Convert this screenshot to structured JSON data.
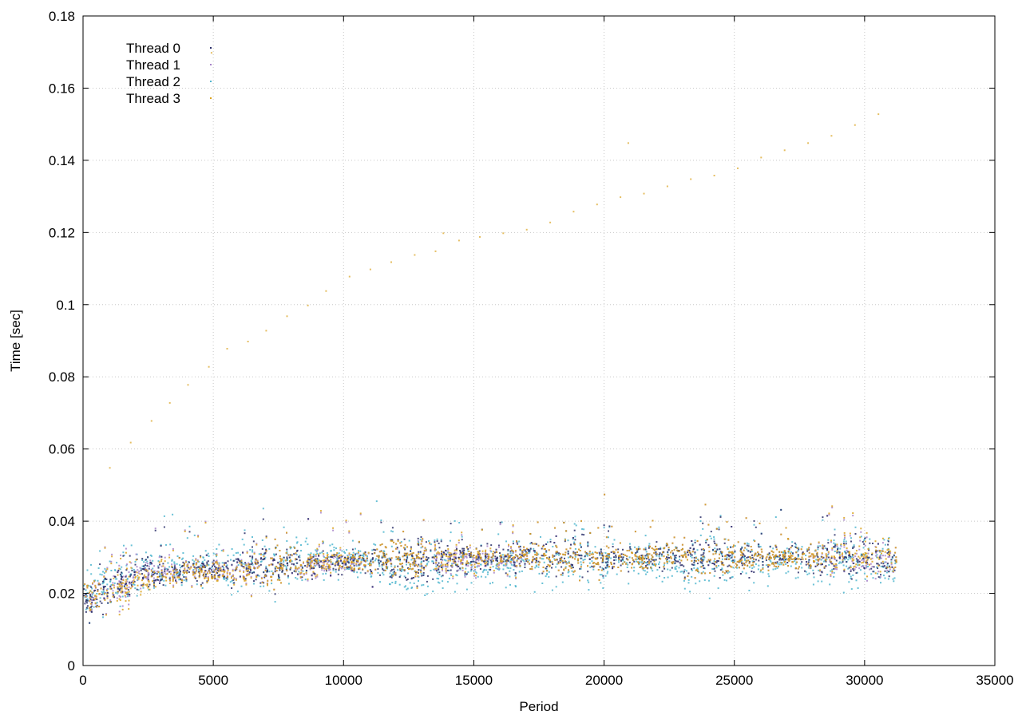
{
  "chart_data": {
    "type": "scatter",
    "title": "",
    "xlabel": "Period",
    "ylabel": "Time [sec]",
    "xlim": [
      0,
      35000
    ],
    "ylim": [
      0,
      0.18
    ],
    "xticks": [
      "0",
      "5000",
      "10000",
      "15000",
      "20000",
      "25000",
      "30000",
      "35000"
    ],
    "yticks": [
      "0",
      "0.02",
      "0.04",
      "0.06",
      "0.08",
      "0.1",
      "0.12",
      "0.14",
      "0.16",
      "0.18"
    ],
    "grid": true,
    "legend_position": "top-left",
    "x_end": 31200,
    "series": [
      {
        "name": "Thread 0",
        "color": "#2b2f6a",
        "points": [
          [
            200,
            0.018
          ],
          [
            2000,
            0.025
          ],
          [
            5000,
            0.027
          ],
          [
            8000,
            0.028
          ],
          [
            11000,
            0.029
          ],
          [
            14000,
            0.03
          ],
          [
            17000,
            0.03
          ],
          [
            20000,
            0.03
          ],
          [
            23000,
            0.03
          ],
          [
            26000,
            0.03
          ],
          [
            29000,
            0.03
          ],
          [
            31000,
            0.029
          ]
        ]
      },
      {
        "name": "Thread 1",
        "color": "#a783c9",
        "points": [
          [
            300,
            0.019
          ],
          [
            2500,
            0.026
          ],
          [
            5500,
            0.027
          ],
          [
            8500,
            0.028
          ],
          [
            11500,
            0.029
          ],
          [
            14500,
            0.029
          ],
          [
            17500,
            0.03
          ],
          [
            20500,
            0.03
          ],
          [
            23500,
            0.03
          ],
          [
            26500,
            0.03
          ],
          [
            29500,
            0.03
          ],
          [
            31100,
            0.029
          ]
        ]
      },
      {
        "name": "Thread 2",
        "color": "#4fb6cf",
        "points": [
          [
            100,
            0.02
          ],
          [
            3000,
            0.027
          ],
          [
            6000,
            0.028
          ],
          [
            9000,
            0.029
          ],
          [
            12000,
            0.029
          ],
          [
            15000,
            0.028
          ],
          [
            18000,
            0.029
          ],
          [
            21000,
            0.029
          ],
          [
            24000,
            0.029
          ],
          [
            27000,
            0.029
          ],
          [
            30000,
            0.029
          ],
          [
            31150,
            0.028
          ]
        ]
      },
      {
        "name": "Thread 3",
        "color": "#daa21e",
        "points": [
          [
            150,
            0.019
          ],
          [
            3500,
            0.026
          ],
          [
            6500,
            0.027
          ],
          [
            9500,
            0.029
          ],
          [
            12500,
            0.029
          ],
          [
            15500,
            0.03
          ],
          [
            18500,
            0.03
          ],
          [
            21500,
            0.03
          ],
          [
            24500,
            0.03
          ],
          [
            27500,
            0.03
          ],
          [
            30500,
            0.031
          ],
          [
            31150,
            0.029
          ]
        ]
      }
    ],
    "outliers": [
      [
        1000,
        0.055
      ],
      [
        1800,
        0.062
      ],
      [
        2600,
        0.068
      ],
      [
        3300,
        0.073
      ],
      [
        4000,
        0.078
      ],
      [
        4800,
        0.083
      ],
      [
        5500,
        0.088
      ],
      [
        6300,
        0.09
      ],
      [
        7000,
        0.093
      ],
      [
        7800,
        0.097
      ],
      [
        8600,
        0.1
      ],
      [
        9300,
        0.104
      ],
      [
        10200,
        0.108
      ],
      [
        11000,
        0.11
      ],
      [
        11800,
        0.112
      ],
      [
        12700,
        0.114
      ],
      [
        13500,
        0.115
      ],
      [
        14400,
        0.118
      ],
      [
        15200,
        0.119
      ],
      [
        16100,
        0.12
      ],
      [
        17000,
        0.121
      ],
      [
        17900,
        0.123
      ],
      [
        18800,
        0.126
      ],
      [
        19700,
        0.128
      ],
      [
        20600,
        0.13
      ],
      [
        21500,
        0.131
      ],
      [
        22400,
        0.133
      ],
      [
        23300,
        0.135
      ],
      [
        24200,
        0.136
      ],
      [
        25100,
        0.138
      ],
      [
        26000,
        0.141
      ],
      [
        26900,
        0.143
      ],
      [
        27800,
        0.145
      ],
      [
        28700,
        0.147
      ],
      [
        29600,
        0.15
      ],
      [
        30500,
        0.153
      ],
      [
        4900,
        0.17
      ],
      [
        13800,
        0.12
      ],
      [
        20900,
        0.145
      ]
    ]
  }
}
